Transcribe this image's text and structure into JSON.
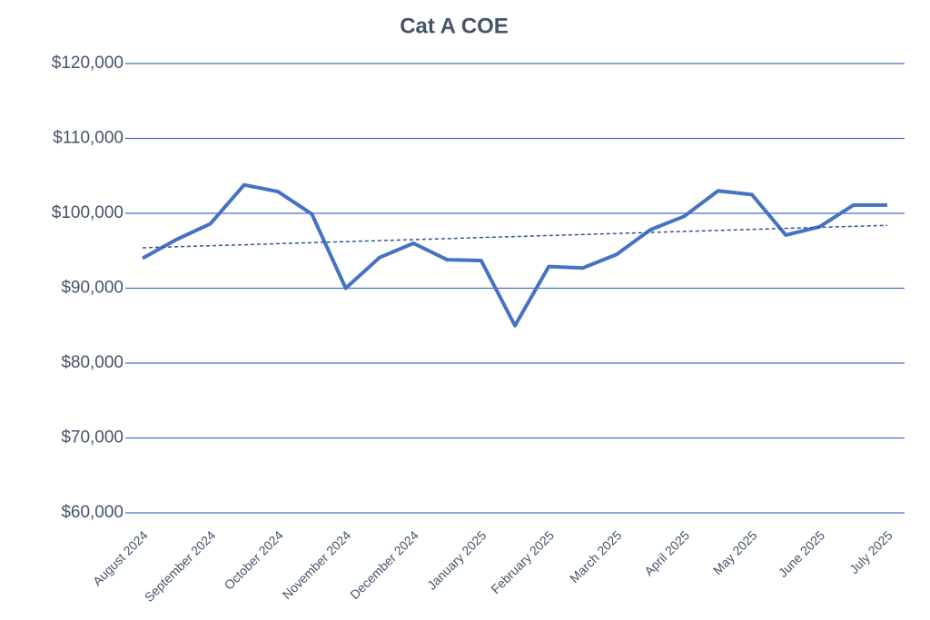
{
  "chart_data": {
    "type": "line",
    "title": "Cat A COE",
    "categories": [
      "August 2024",
      null,
      "September 2024",
      null,
      "October 2024",
      null,
      "November 2024",
      null,
      "December 2024",
      null,
      "January 2025",
      null,
      "February 2025",
      null,
      "March 2025",
      null,
      "April 2025",
      null,
      "May 2025",
      null,
      "June 2025",
      null,
      "July 2025"
    ],
    "series": [
      {
        "name": "Cat A COE",
        "color": "#4472c4",
        "values": [
          94000,
          96500,
          98600,
          103800,
          102900,
          99900,
          90000,
          94100,
          96000,
          93800,
          93700,
          85000,
          92900,
          92700,
          94500,
          97800,
          99600,
          103000,
          102500,
          97100,
          98200,
          101100,
          101100
        ]
      }
    ],
    "trendline": {
      "values": [
        95400,
        98400
      ],
      "color": "#2f5597",
      "style": "dashed"
    },
    "ylim": [
      60000,
      120000
    ],
    "yticks": [
      {
        "value": 60000,
        "label": "$60,000"
      },
      {
        "value": 70000,
        "label": "$70,000"
      },
      {
        "value": 80000,
        "label": "$80,000"
      },
      {
        "value": 90000,
        "label": "$90,000"
      },
      {
        "value": 100000,
        "label": "$100,000"
      },
      {
        "value": 110000,
        "label": "$110,000"
      },
      {
        "value": 120000,
        "label": "$120,000"
      }
    ],
    "grid": true
  }
}
